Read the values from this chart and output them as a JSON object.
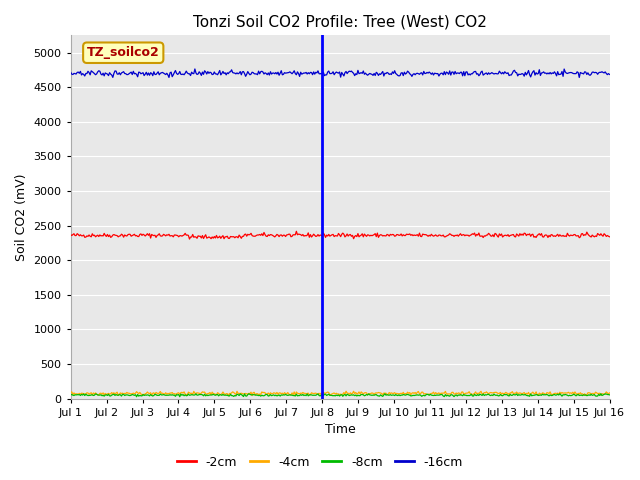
{
  "title": "Tonzi Soil CO2 Profile: Tree (West) CO2",
  "ylabel": "Soil CO2 (mV)",
  "xlabel": "Time",
  "legend_label": "TZ_soilco2",
  "ylim": [
    0,
    5250
  ],
  "yticks": [
    0,
    500,
    1000,
    1500,
    2000,
    2500,
    3000,
    3500,
    4000,
    4500,
    5000
  ],
  "xtick_labels": [
    "Jul 1",
    "Jul 2",
    "Jul 3",
    "Jul 4",
    "Jul 5",
    "Jul 6",
    "Jul 7",
    "Jul 8",
    "Jul 9",
    "Jul 10",
    "Jul 11",
    "Jul 12",
    "Jul 13",
    "Jul 14",
    "Jul 15",
    "Jul 16"
  ],
  "n_points": 500,
  "line_2cm_color": "#ff0000",
  "line_4cm_color": "#ffaa00",
  "line_8cm_color": "#00bb00",
  "line_16cm_color": "#0000cc",
  "vline_color": "#0000ff",
  "mean_2cm": 2360,
  "mean_4cm": 75,
  "mean_8cm": 50,
  "mean_16cm": 4700,
  "noise_2cm": 15,
  "noise_4cm": 12,
  "noise_8cm": 8,
  "noise_16cm": 20,
  "plot_bg_color": "#e8e8e8",
  "fig_bg_color": "#ffffff",
  "legend_entries": [
    "-2cm",
    "-4cm",
    "-8cm",
    "-16cm"
  ],
  "legend_colors": [
    "#ff0000",
    "#ffaa00",
    "#00bb00",
    "#0000cc"
  ],
  "vline_x": 7.0,
  "xlim": [
    0,
    15
  ]
}
